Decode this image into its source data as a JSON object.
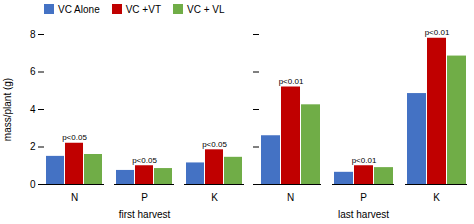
{
  "chart_data": [
    {
      "type": "bar",
      "xlabel": "first harvest",
      "ylabel": "mass/plant (g)",
      "categories": [
        "N",
        "P",
        "K"
      ],
      "series": [
        {
          "name": "VC Alone",
          "color": "#4472C4",
          "values": [
            1.5,
            0.75,
            1.15
          ]
        },
        {
          "name": "VC +VT",
          "color": "#C00000",
          "values": [
            2.2,
            1.0,
            1.85
          ]
        },
        {
          "name": "VC + VL",
          "color": "#70AD47",
          "values": [
            1.6,
            0.85,
            1.45
          ]
        }
      ],
      "annotations": [
        "p<0.05",
        "p<0.05",
        "p<0.05"
      ],
      "ylim": [
        0,
        8
      ],
      "yticks": [
        0,
        2,
        4,
        6,
        8
      ],
      "grid": false,
      "legend": "upper left"
    },
    {
      "type": "bar",
      "xlabel": "last harvest",
      "categories": [
        "N",
        "P",
        "K"
      ],
      "series": [
        {
          "name": "VC Alone",
          "color": "#4472C4",
          "values": [
            2.6,
            0.65,
            4.85
          ]
        },
        {
          "name": "VC +VT",
          "color": "#C00000",
          "values": [
            5.2,
            1.0,
            7.8
          ]
        },
        {
          "name": "VC + VL",
          "color": "#70AD47",
          "values": [
            4.25,
            0.9,
            6.85
          ]
        }
      ],
      "annotations": [
        "p<0.01",
        "p<0.01",
        "p<0.01"
      ],
      "ylim": [
        0,
        8
      ],
      "yticks": [
        0,
        2,
        4,
        6,
        8
      ],
      "grid": false,
      "tick_labels": "x"
    }
  ]
}
